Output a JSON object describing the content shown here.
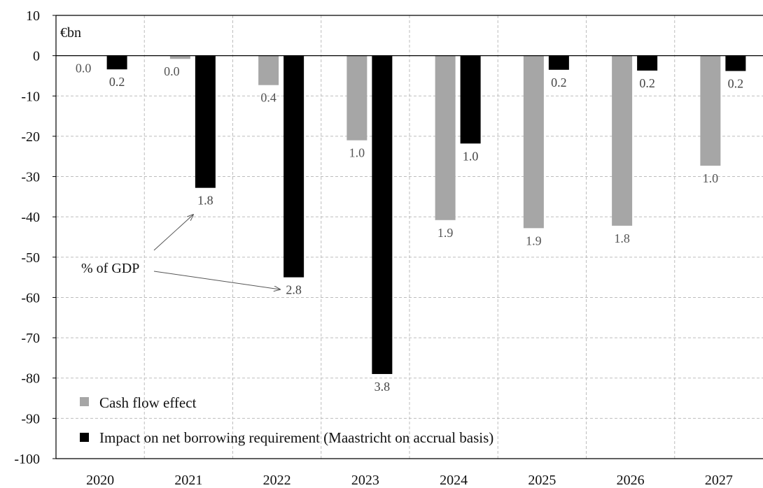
{
  "chart_data": {
    "type": "bar",
    "unit_label": "€bn",
    "categories": [
      "2020",
      "2021",
      "2022",
      "2023",
      "2024",
      "2025",
      "2026",
      "2027"
    ],
    "ylim": [
      -100,
      10
    ],
    "yticks": [
      10,
      0,
      -10,
      -20,
      -30,
      -40,
      -50,
      -60,
      -70,
      -80,
      -90,
      -100
    ],
    "grid": true,
    "legend_position": "bottom-left",
    "series": [
      {
        "name": "Cash flow effect",
        "color": "#a6a6a6",
        "values": [
          0,
          -0.8,
          -7.3,
          -21,
          -40.8,
          -42.8,
          -42.2,
          -27.3
        ],
        "pct_gdp_labels": [
          "0.0",
          "0.0",
          "0.4",
          "1.0",
          "1.9",
          "1.9",
          "1.8",
          "1.0"
        ]
      },
      {
        "name": "Impact on net borrowing requirement (Maastricht on accrual basis)",
        "color": "#000000",
        "values": [
          -3.4,
          -32.8,
          -55,
          -79,
          -21.8,
          -3.5,
          -3.7,
          -3.8
        ],
        "pct_gdp_labels": [
          "0.2",
          "1.8",
          "2.8",
          "3.8",
          "1.0",
          "0.2",
          "0.2",
          "0.2"
        ]
      }
    ],
    "annotation": "% of GDP"
  }
}
